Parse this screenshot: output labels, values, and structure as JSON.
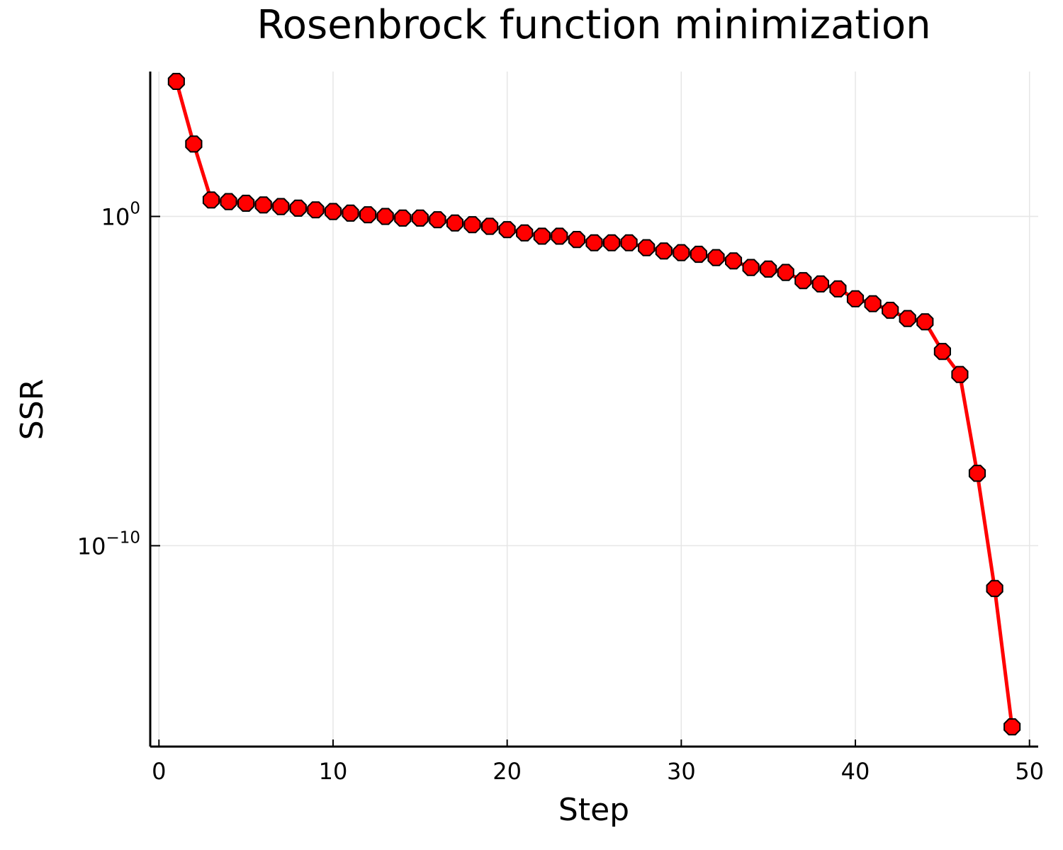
{
  "chart_data": {
    "type": "line",
    "title": "Rosenbrock function minimization",
    "xlabel": "Step",
    "ylabel": "SSR",
    "xlim": [
      -0.5,
      50.5
    ],
    "ylim_log10": [
      -16.1,
      4.4
    ],
    "y_scale": "log",
    "grid": true,
    "legend": "none",
    "x_ticks": [
      {
        "value": 0,
        "label": "0"
      },
      {
        "value": 10,
        "label": "10"
      },
      {
        "value": 20,
        "label": "20"
      },
      {
        "value": 30,
        "label": "30"
      },
      {
        "value": 40,
        "label": "40"
      },
      {
        "value": 50,
        "label": "50"
      }
    ],
    "y_ticks": [
      {
        "log10": 0,
        "base": "10",
        "exponent": "0"
      },
      {
        "log10": -10,
        "base": "10",
        "exponent": "−10"
      }
    ],
    "series": [
      {
        "color": "#ff0000",
        "marker": "octagon",
        "x": [
          1,
          2,
          3,
          4,
          5,
          6,
          7,
          8,
          9,
          10,
          11,
          12,
          13,
          14,
          15,
          16,
          17,
          18,
          19,
          20,
          21,
          22,
          23,
          24,
          25,
          26,
          27,
          28,
          29,
          30,
          31,
          32,
          33,
          34,
          35,
          36,
          37,
          38,
          39,
          40,
          41,
          42,
          43,
          44,
          45,
          46,
          47,
          48,
          49
        ],
        "log10_y": [
          4.1,
          2.2,
          0.5,
          0.45,
          0.4,
          0.35,
          0.3,
          0.25,
          0.2,
          0.15,
          0.1,
          0.05,
          0.0,
          -0.05,
          -0.05,
          -0.1,
          -0.2,
          -0.25,
          -0.3,
          -0.4,
          -0.5,
          -0.6,
          -0.6,
          -0.7,
          -0.8,
          -0.8,
          -0.8,
          -0.95,
          -1.05,
          -1.1,
          -1.15,
          -1.25,
          -1.35,
          -1.55,
          -1.6,
          -1.7,
          -1.95,
          -2.05,
          -2.2,
          -2.5,
          -2.65,
          -2.85,
          -3.1,
          -3.2,
          -4.1,
          -4.8,
          -7.8,
          -11.3,
          -15.5
        ]
      }
    ]
  },
  "colors": {
    "line": "#ff0000",
    "marker_fill": "#ff0000",
    "marker_stroke": "#000000",
    "grid": "#e6e6e6",
    "axis": "#000000"
  }
}
